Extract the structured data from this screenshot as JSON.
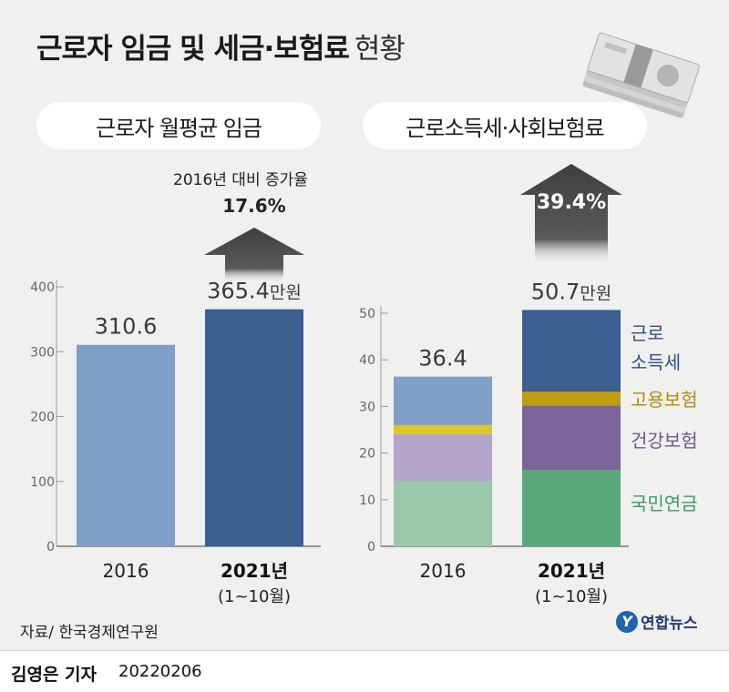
{
  "title": {
    "main": "근로자 임금 및 세금·보험료",
    "suffix": "현황"
  },
  "panels": {
    "left_title": "근로자 월평균 임금",
    "right_title": "근로소득세·사회보험료"
  },
  "increase_note": {
    "label": "2016년 대비 증가율"
  },
  "source": "자료/ 한국경제연구원",
  "reporter": "김영은 기자",
  "date": "20220206",
  "logo": {
    "mark": "Y",
    "text": "연합뉴스"
  },
  "colors": {
    "background": "#f0f0ee",
    "bar_2016": "#7f9fc9",
    "bar_2021": "#3c5f92",
    "arrow": "#4a4a4a",
    "income_tax_label": "#2e4f86",
    "employment_ins_label": "#b08a10",
    "health_ins_label": "#6f5690",
    "pension_label": "#3a9a6a"
  },
  "chart_data": [
    {
      "type": "bar",
      "title": "근로자 월평균 임금",
      "categories": [
        "2016",
        "2021년"
      ],
      "category_sublabels": [
        "",
        "(1~10월)"
      ],
      "values": [
        310.6,
        365.4
      ],
      "value_labels": [
        "310.6",
        "365.4"
      ],
      "unit": "만원",
      "ylim": [
        0,
        400
      ],
      "yticks": [
        0,
        100,
        200,
        300,
        400
      ],
      "increase_label": "17.6%",
      "grid": false
    },
    {
      "type": "bar",
      "stacked": true,
      "title": "근로소득세·사회보험료",
      "categories": [
        "2016",
        "2021년"
      ],
      "category_sublabels": [
        "",
        "(1~10월)"
      ],
      "totals": [
        36.4,
        50.7
      ],
      "total_labels": [
        "36.4",
        "50.7"
      ],
      "unit": "만원",
      "ylim": [
        0,
        50
      ],
      "yticks": [
        0,
        10,
        20,
        30,
        40,
        50
      ],
      "increase_label": "39.4%",
      "series": [
        {
          "name": "국민연금",
          "values": [
            14.0,
            16.4
          ],
          "color_2016": "#9cc8ac",
          "color_2021": "#5aa87c"
        },
        {
          "name": "건강보험",
          "values": [
            10.1,
            13.8
          ],
          "color_2016": "#b3a4c9",
          "color_2021": "#7a6498"
        },
        {
          "name": "고용보험",
          "values": [
            1.9,
            3.0
          ],
          "color_2016": "#dfc826",
          "color_2021": "#c29b12"
        },
        {
          "name": "근로\n소득세",
          "values": [
            10.4,
            17.5
          ],
          "color_2016": "#7f9fc9",
          "color_2021": "#3c5f92"
        }
      ],
      "legend_position": "right",
      "grid": false
    }
  ]
}
